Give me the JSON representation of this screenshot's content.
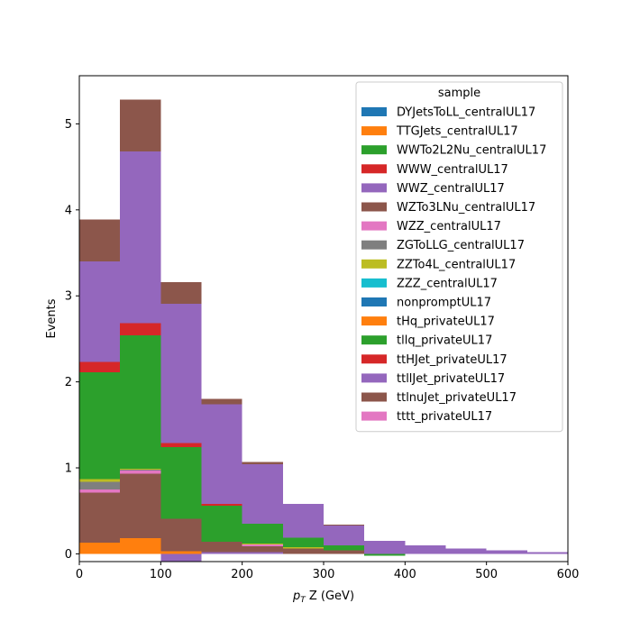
{
  "chart_data": {
    "type": "bar",
    "stacked": true,
    "histogram": true,
    "bin_edges": [
      0,
      50,
      100,
      150,
      200,
      250,
      300,
      350,
      400,
      450,
      500,
      550,
      600
    ],
    "xlabel_main": "p",
    "xlabel_sub": "T",
    "xlabel_rest": " Z (GeV)",
    "ylabel": "Events",
    "xlim": [
      0,
      600
    ],
    "ylim": [
      -0.09,
      5.56
    ],
    "xticks": [
      0,
      100,
      200,
      300,
      400,
      500,
      600
    ],
    "yticks": [
      0,
      1,
      2,
      3,
      4,
      5
    ],
    "grid": false,
    "legend": {
      "title": "sample",
      "placement": "upper-right"
    },
    "series": [
      {
        "name": "DYJetsToLL_centralUL17",
        "color": "#1f77b4",
        "values": [
          0,
          0,
          0,
          0,
          0,
          0,
          0,
          0,
          0,
          0,
          0,
          0
        ]
      },
      {
        "name": "TTGJets_centralUL17",
        "color": "#ff7f0e",
        "values": [
          0.13,
          0.18,
          0.03,
          0,
          0,
          0,
          0,
          0,
          0,
          0,
          0,
          0
        ]
      },
      {
        "name": "WWTo2L2Nu_centralUL17",
        "color": "#2ca02c",
        "values": [
          0,
          0,
          0,
          0,
          0,
          0,
          0,
          0,
          0,
          0,
          0,
          0
        ]
      },
      {
        "name": "WWW_centralUL17",
        "color": "#d62728",
        "values": [
          0,
          0,
          0,
          0,
          0,
          0,
          0,
          0,
          0,
          0,
          0,
          0
        ]
      },
      {
        "name": "WWZ_centralUL17",
        "color": "#9467bd",
        "values": [
          0,
          0,
          -0.12,
          0.02,
          0.02,
          0,
          0,
          0,
          0,
          0,
          0,
          0
        ]
      },
      {
        "name": "WZTo3LNu_centralUL17",
        "color": "#8c564b",
        "values": [
          0.58,
          0.75,
          0.38,
          0.12,
          0.07,
          0.06,
          0.04,
          0,
          0,
          0,
          0,
          0
        ]
      },
      {
        "name": "WZZ_centralUL17",
        "color": "#e377c2",
        "values": [
          0.04,
          0.04,
          0,
          0,
          0.02,
          0,
          0,
          0,
          0,
          0,
          0,
          0
        ]
      },
      {
        "name": "ZGToLLG_centralUL17",
        "color": "#7f7f7f",
        "values": [
          0.09,
          0.01,
          0,
          0,
          0,
          0,
          0,
          0,
          0,
          0,
          0,
          0
        ]
      },
      {
        "name": "ZZTo4L_centralUL17",
        "color": "#bcbd22",
        "values": [
          0.03,
          0.01,
          0,
          0,
          0.01,
          0.02,
          0,
          0,
          0,
          0,
          0,
          0
        ]
      },
      {
        "name": "ZZZ_centralUL17",
        "color": "#17becf",
        "values": [
          0,
          0,
          0,
          0,
          0,
          0,
          0,
          0,
          0,
          0,
          0,
          0
        ]
      },
      {
        "name": "nonpromptUL17",
        "color": "#1f77b4",
        "values": [
          0,
          0,
          0,
          0,
          0,
          0,
          0,
          0,
          0,
          0,
          0,
          0
        ]
      },
      {
        "name": "tHq_privateUL17",
        "color": "#ff7f0e",
        "values": [
          0,
          0,
          0,
          0,
          0,
          0,
          0,
          0,
          0,
          0,
          0,
          0
        ]
      },
      {
        "name": "tllq_privateUL17",
        "color": "#2ca02c",
        "values": [
          1.24,
          1.55,
          0.83,
          0.42,
          0.23,
          0.11,
          0.06,
          -0.02,
          0,
          0,
          0,
          0
        ]
      },
      {
        "name": "ttHJet_privateUL17",
        "color": "#d62728",
        "values": [
          0.12,
          0.14,
          0.05,
          0.02,
          0,
          0,
          0,
          0,
          0,
          0,
          0,
          0
        ]
      },
      {
        "name": "ttllJet_privateUL17",
        "color": "#9467bd",
        "values": [
          1.17,
          2.0,
          1.62,
          1.16,
          0.69,
          0.39,
          0.23,
          0.15,
          0.1,
          0.06,
          0.04,
          0.02
        ]
      },
      {
        "name": "ttlnuJet_privateUL17",
        "color": "#8c564b",
        "values": [
          0.49,
          0.6,
          0.25,
          0.06,
          0.03,
          0,
          0.01,
          0,
          0,
          0,
          0,
          0
        ]
      },
      {
        "name": "tttt_privateUL17",
        "color": "#e377c2",
        "values": [
          0,
          0,
          0,
          0,
          0,
          0,
          0,
          0,
          0,
          0,
          0,
          0
        ]
      }
    ]
  }
}
